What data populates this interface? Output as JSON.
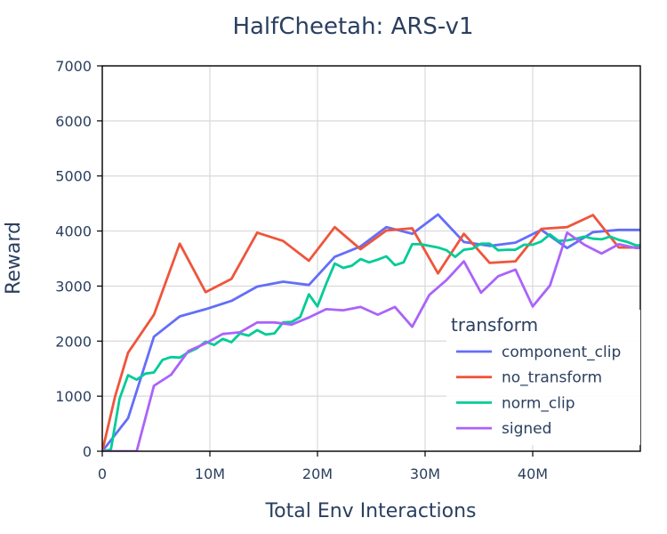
{
  "chart_data": {
    "type": "line",
    "title": "HalfCheetah: ARS-v1",
    "xlabel": "Total Env Interactions",
    "ylabel": "Reward",
    "xlim": [
      0,
      50000000
    ],
    "ylim": [
      0,
      7000
    ],
    "x_ticks": [
      {
        "value": 0,
        "label": "0"
      },
      {
        "value": 10000000,
        "label": "10M"
      },
      {
        "value": 20000000,
        "label": "20M"
      },
      {
        "value": 30000000,
        "label": "30M"
      },
      {
        "value": 40000000,
        "label": "40M"
      }
    ],
    "y_ticks": [
      {
        "value": 0,
        "label": "0"
      },
      {
        "value": 1000,
        "label": "1000"
      },
      {
        "value": 2000,
        "label": "2000"
      },
      {
        "value": 3000,
        "label": "3000"
      },
      {
        "value": 4000,
        "label": "4000"
      },
      {
        "value": 5000,
        "label": "5000"
      },
      {
        "value": 6000,
        "label": "6000"
      },
      {
        "value": 7000,
        "label": "7000"
      }
    ],
    "grid": true,
    "legend": {
      "title": "transform",
      "placement": "bottom-right"
    },
    "series": [
      {
        "name": "component_clip",
        "color": "#636efa",
        "x": [
          0,
          2400000,
          4800000,
          7200000,
          9600000,
          12000000,
          14400000,
          16800000,
          19200000,
          21600000,
          24000000,
          26400000,
          28800000,
          31200000,
          33600000,
          36000000,
          38400000,
          40800000,
          43200000,
          45600000,
          48000000,
          50000000
        ],
        "y": [
          0,
          600,
          2080,
          2450,
          2580,
          2730,
          2990,
          3080,
          3020,
          3530,
          3720,
          4070,
          3950,
          4300,
          3800,
          3730,
          3790,
          4020,
          3690,
          3980,
          4020,
          4020
        ]
      },
      {
        "name": "no_transform",
        "color": "#ef553b",
        "x": [
          0,
          1200000,
          2400000,
          4800000,
          7200000,
          9600000,
          12000000,
          14400000,
          16800000,
          19200000,
          21600000,
          24000000,
          26400000,
          28800000,
          31200000,
          33600000,
          36000000,
          38400000,
          40800000,
          43200000,
          45600000,
          48000000,
          50000000
        ],
        "y": [
          0,
          1000,
          1790,
          2480,
          3770,
          2890,
          3130,
          3970,
          3820,
          3460,
          4070,
          3670,
          4010,
          4050,
          3230,
          3950,
          3420,
          3450,
          4040,
          4070,
          4290,
          3700,
          3700
        ]
      },
      {
        "name": "norm_clip",
        "color": "#00cc96",
        "x": [
          0,
          800000,
          1600000,
          2400000,
          3200000,
          4000000,
          4800000,
          5600000,
          6400000,
          7200000,
          8000000,
          8800000,
          9600000,
          10400000,
          11200000,
          12000000,
          12800000,
          13600000,
          14400000,
          15200000,
          16000000,
          16800000,
          17600000,
          18400000,
          19200000,
          20000000,
          20800000,
          21600000,
          22400000,
          23200000,
          24000000,
          24800000,
          25600000,
          26400000,
          27200000,
          28000000,
          28800000,
          29600000,
          30400000,
          31200000,
          32000000,
          32800000,
          33600000,
          34400000,
          35200000,
          36000000,
          36800000,
          37600000,
          38400000,
          39200000,
          40000000,
          40800000,
          41600000,
          42400000,
          43200000,
          44000000,
          44800000,
          45600000,
          46400000,
          47200000,
          48000000,
          48800000,
          49600000,
          50000000
        ],
        "y": [
          0,
          30,
          950,
          1380,
          1300,
          1410,
          1430,
          1660,
          1710,
          1700,
          1800,
          1870,
          1990,
          1930,
          2040,
          1980,
          2140,
          2100,
          2200,
          2120,
          2140,
          2340,
          2350,
          2440,
          2850,
          2630,
          3040,
          3410,
          3330,
          3370,
          3490,
          3430,
          3480,
          3540,
          3380,
          3430,
          3760,
          3760,
          3730,
          3700,
          3650,
          3530,
          3660,
          3680,
          3770,
          3770,
          3650,
          3660,
          3660,
          3750,
          3750,
          3810,
          3940,
          3820,
          3830,
          3860,
          3900,
          3860,
          3850,
          3900,
          3840,
          3800,
          3740,
          3740
        ]
      },
      {
        "name": "signed",
        "color": "#ab63fa",
        "x": [
          0,
          800000,
          1600000,
          2400000,
          3200000,
          4800000,
          6400000,
          8000000,
          9600000,
          11200000,
          12800000,
          14400000,
          16000000,
          17600000,
          19200000,
          20800000,
          22400000,
          24000000,
          25600000,
          27200000,
          28800000,
          30400000,
          32000000,
          33600000,
          35200000,
          36800000,
          38400000,
          40000000,
          41600000,
          43200000,
          44800000,
          46400000,
          48000000,
          49600000,
          50000000
        ],
        "y": [
          0,
          0,
          0,
          0,
          0,
          1190,
          1390,
          1820,
          1960,
          2130,
          2160,
          2340,
          2340,
          2300,
          2430,
          2580,
          2560,
          2620,
          2480,
          2620,
          2260,
          2840,
          3110,
          3450,
          2880,
          3180,
          3300,
          2630,
          3010,
          3970,
          3750,
          3590,
          3760,
          3690,
          3690
        ]
      }
    ]
  }
}
